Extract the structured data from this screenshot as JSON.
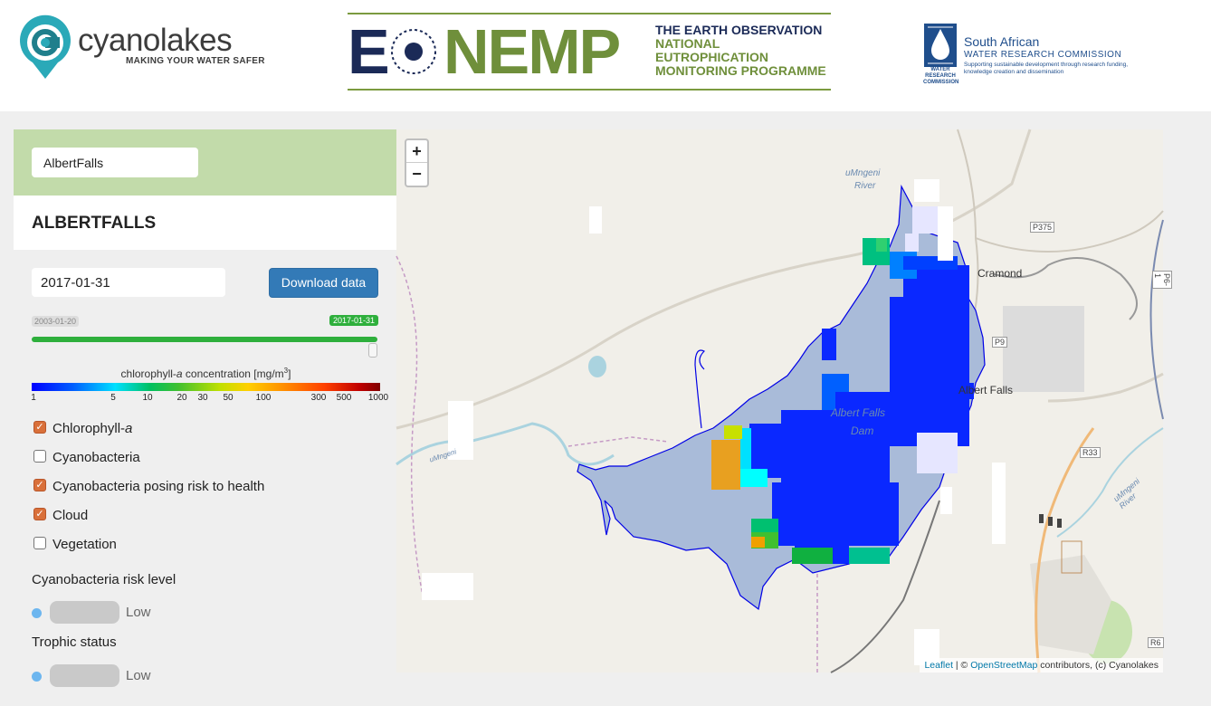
{
  "header": {
    "cyanolakes": {
      "name": "cyanolakes",
      "tagline": "MAKING YOUR WATER SAFER"
    },
    "enemp": {
      "acronym_e": "E",
      "acronym_nemp": "NEMP",
      "line1": "THE EARTH OBSERVATION",
      "line2": "NATIONAL",
      "line3": "EUTROPHICATION",
      "line4": "MONITORING PROGRAMME"
    },
    "wrc": {
      "title": "South African",
      "subtitle": "WATER RESEARCH COMMISSION",
      "tagline": "Supporting sustainable development through research funding, knowledge creation and dissemination",
      "mark_text": "WATER RESEARCH COMMISSION"
    }
  },
  "panel": {
    "lake_select_value": "AlbertFalls",
    "lake_title": "ALBERTFALLS",
    "date_value": "2017-01-31",
    "download_label": "Download data",
    "slider": {
      "min_label": "2003-01-20",
      "current_label": "2017-01-31",
      "position": 1.0
    },
    "legend": {
      "label": "chlorophyll-a concentration [mg/m3]",
      "ticks": [
        "1",
        "5",
        "10",
        "20",
        "30",
        "50",
        "100",
        "300",
        "500",
        "1000"
      ]
    },
    "layers": [
      {
        "label": "Chlorophyll-a",
        "checked": true
      },
      {
        "label": "Cyanobacteria",
        "checked": false
      },
      {
        "label": "Cyanobacteria posing risk to health",
        "checked": true
      },
      {
        "label": "Cloud",
        "checked": true
      },
      {
        "label": "Vegetation",
        "checked": false
      }
    ],
    "risk": {
      "title": "Cyanobacteria risk level",
      "value": "Low",
      "color": "#6db6ef"
    },
    "trophic": {
      "title": "Trophic status",
      "value": "Low",
      "color": "#6db6ef"
    }
  },
  "map": {
    "zoom_in": "+",
    "zoom_out": "−",
    "labels": {
      "river1": "uMngeni",
      "river1b": "River",
      "cramond": "Cramond",
      "albert_falls_town": "Albert Falls",
      "dam_label1": "Albert Falls",
      "dam_label2": "Dam",
      "river_west": "uMngeni",
      "river_east": "uMngeni River"
    },
    "roads": [
      "P375",
      "P9",
      "R33",
      "P6-1",
      "R6"
    ],
    "attribution": {
      "leaflet": "Leaflet",
      "sep": " | © ",
      "osm": "OpenStreetMap",
      "rest": " contributors, (c) Cyanolakes"
    }
  }
}
